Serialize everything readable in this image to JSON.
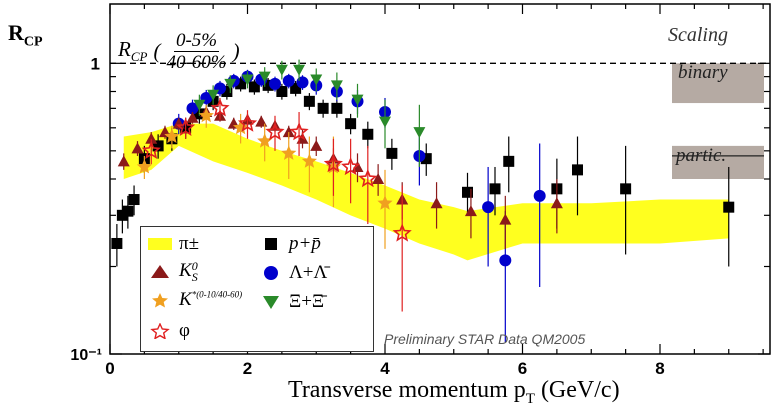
{
  "chart_data": {
    "type": "scatter",
    "ylabel_main": "R",
    "ylabel_sub": "CP",
    "xlabel_main": "Transverse momentum p",
    "xlabel_sub": "T",
    "xlabel_unit": " (GeV/c)",
    "ratio_prefix": "R",
    "ratio_prefix_sub": "CP",
    "ratio_num": "0-5%",
    "ratio_den": "40-60%",
    "scaling_title": "Scaling",
    "binary_label": "binary",
    "partic_label": "partic.",
    "preliminary_text": "Preliminary STAR Data QM2005",
    "xlim": [
      0,
      9.6
    ],
    "ylim": [
      0.1,
      1.6
    ],
    "log_y": true,
    "x_ticks": [
      "0",
      "2",
      "4",
      "6",
      "8"
    ],
    "y_ticks": [
      "10⁻¹",
      "1"
    ],
    "reference_line_y": 1.0,
    "binary_band": [
      0.73,
      1.0
    ],
    "partic_band": [
      0.4,
      0.52
    ],
    "pion_band": {
      "name": "π±",
      "color": "#ffff1f",
      "x": [
        0.2,
        0.6,
        1.0,
        1.5,
        2.0,
        2.5,
        3.0,
        3.5,
        4.0,
        4.5,
        5.0,
        5.2,
        6.0,
        7.0,
        8.0,
        9.0
      ],
      "low": [
        0.4,
        0.43,
        0.52,
        0.46,
        0.42,
        0.38,
        0.34,
        0.3,
        0.27,
        0.24,
        0.22,
        0.21,
        0.24,
        0.24,
        0.24,
        0.25
      ],
      "high": [
        0.56,
        0.58,
        0.62,
        0.62,
        0.55,
        0.5,
        0.46,
        0.42,
        0.38,
        0.34,
        0.32,
        0.31,
        0.33,
        0.33,
        0.34,
        0.34
      ]
    },
    "series": [
      {
        "name": "p+p̄",
        "marker": "square",
        "color": "#000000",
        "points": [
          [
            0.1,
            0.24
          ],
          [
            0.18,
            0.3
          ],
          [
            0.26,
            0.31
          ],
          [
            0.35,
            0.34
          ],
          [
            0.5,
            0.47
          ],
          [
            0.7,
            0.52
          ],
          [
            0.9,
            0.55
          ],
          [
            1.1,
            0.6
          ],
          [
            1.3,
            0.67
          ],
          [
            1.5,
            0.74
          ],
          [
            1.7,
            0.8
          ],
          [
            1.9,
            0.85
          ],
          [
            2.1,
            0.83
          ],
          [
            2.3,
            0.84
          ],
          [
            2.5,
            0.8
          ],
          [
            2.7,
            0.82
          ],
          [
            2.9,
            0.74
          ],
          [
            3.1,
            0.7
          ],
          [
            3.3,
            0.7
          ],
          [
            3.5,
            0.62
          ],
          [
            3.75,
            0.57
          ],
          [
            4.1,
            0.49
          ],
          [
            4.6,
            0.47
          ],
          [
            5.2,
            0.36
          ],
          [
            5.6,
            0.37
          ],
          [
            5.8,
            0.46
          ],
          [
            6.5,
            0.37
          ],
          [
            6.8,
            0.43
          ],
          [
            7.5,
            0.37
          ],
          [
            9.0,
            0.32
          ]
        ],
        "err": [
          0.04,
          0.04,
          0.04,
          0.04,
          0.05,
          0.05,
          0.05,
          0.05,
          0.05,
          0.05,
          0.05,
          0.05,
          0.05,
          0.05,
          0.05,
          0.05,
          0.05,
          0.05,
          0.05,
          0.05,
          0.06,
          0.06,
          0.06,
          0.06,
          0.07,
          0.1,
          0.1,
          0.13,
          0.15,
          0.12
        ]
      },
      {
        "name": "Λ+Λ̄",
        "marker": "circle",
        "color": "#0000cc",
        "points": [
          [
            1.0,
            0.62
          ],
          [
            1.2,
            0.7
          ],
          [
            1.4,
            0.76
          ],
          [
            1.6,
            0.82
          ],
          [
            1.8,
            0.87
          ],
          [
            2.0,
            0.9
          ],
          [
            2.2,
            0.88
          ],
          [
            2.4,
            0.85
          ],
          [
            2.6,
            0.87
          ],
          [
            2.8,
            0.86
          ],
          [
            3.0,
            0.84
          ],
          [
            3.3,
            0.8
          ],
          [
            3.6,
            0.74
          ],
          [
            4.0,
            0.68
          ],
          [
            4.5,
            0.48
          ],
          [
            5.5,
            0.32
          ],
          [
            5.75,
            0.21
          ],
          [
            6.25,
            0.35
          ]
        ],
        "err": [
          0.05,
          0.05,
          0.05,
          0.05,
          0.05,
          0.05,
          0.05,
          0.05,
          0.05,
          0.05,
          0.06,
          0.06,
          0.07,
          0.08,
          0.1,
          0.12,
          0.1,
          0.18
        ]
      },
      {
        "name": "Ξ+Ξ̄",
        "marker": "tri-down",
        "color": "#2a8a2a",
        "points": [
          [
            1.3,
            0.72
          ],
          [
            1.5,
            0.78
          ],
          [
            1.75,
            0.85
          ],
          [
            2.0,
            0.88
          ],
          [
            2.25,
            0.9
          ],
          [
            2.5,
            0.95
          ],
          [
            2.75,
            0.95
          ],
          [
            3.0,
            0.88
          ],
          [
            3.3,
            0.84
          ],
          [
            3.6,
            0.75
          ],
          [
            4.0,
            0.63
          ],
          [
            4.5,
            0.58
          ]
        ],
        "err": [
          0.06,
          0.06,
          0.06,
          0.06,
          0.07,
          0.07,
          0.08,
          0.08,
          0.09,
          0.1,
          0.12,
          0.14
        ]
      },
      {
        "name": "K⁰S",
        "marker": "tri-up",
        "color": "#8b1a1a",
        "points": [
          [
            0.2,
            0.46
          ],
          [
            0.4,
            0.51
          ],
          [
            0.6,
            0.55
          ],
          [
            0.8,
            0.58
          ],
          [
            1.0,
            0.62
          ],
          [
            1.2,
            0.65
          ],
          [
            1.4,
            0.68
          ],
          [
            1.6,
            0.66
          ],
          [
            1.8,
            0.62
          ],
          [
            2.0,
            0.64
          ],
          [
            2.2,
            0.63
          ],
          [
            2.4,
            0.61
          ],
          [
            2.6,
            0.58
          ],
          [
            2.8,
            0.55
          ],
          [
            3.0,
            0.52
          ],
          [
            3.25,
            0.47
          ],
          [
            3.6,
            0.44
          ],
          [
            3.9,
            0.4
          ],
          [
            4.25,
            0.34
          ],
          [
            4.75,
            0.33
          ],
          [
            5.25,
            0.31
          ],
          [
            5.75,
            0.29
          ],
          [
            6.5,
            0.33
          ]
        ],
        "err": [
          0.03,
          0.03,
          0.03,
          0.03,
          0.03,
          0.03,
          0.03,
          0.03,
          0.03,
          0.03,
          0.03,
          0.03,
          0.03,
          0.04,
          0.04,
          0.04,
          0.05,
          0.05,
          0.05,
          0.06,
          0.06,
          0.06,
          0.07
        ]
      },
      {
        "name": "K*",
        "marker": "star",
        "color": "#f0a020",
        "points": [
          [
            0.5,
            0.44
          ],
          [
            0.9,
            0.56
          ],
          [
            1.4,
            0.66
          ],
          [
            1.9,
            0.6
          ],
          [
            2.25,
            0.54
          ],
          [
            2.6,
            0.49
          ],
          [
            2.9,
            0.46
          ],
          [
            3.25,
            0.44
          ],
          [
            4.0,
            0.33
          ]
        ],
        "err": [
          0.04,
          0.05,
          0.06,
          0.07,
          0.08,
          0.09,
          0.1,
          0.12,
          0.1
        ]
      },
      {
        "name": "φ",
        "marker": "open-star",
        "color": "#e02020",
        "points": [
          [
            0.6,
            0.5
          ],
          [
            1.1,
            0.6
          ],
          [
            1.6,
            0.7
          ],
          [
            2.0,
            0.62
          ],
          [
            2.4,
            0.58
          ],
          [
            2.75,
            0.58
          ],
          [
            3.25,
            0.45
          ],
          [
            3.5,
            0.44
          ],
          [
            3.75,
            0.4
          ],
          [
            4.25,
            0.26
          ]
        ],
        "err": [
          0.05,
          0.05,
          0.06,
          0.07,
          0.08,
          0.1,
          0.1,
          0.11,
          0.12,
          0.12
        ]
      }
    ]
  },
  "legend": {
    "pion": "π±",
    "kshort": "K",
    "kshort_sup": "0",
    "kshort_sub": "S",
    "kstar": "K",
    "kstar_sup": "*(0-10/40-60)",
    "phi": "φ",
    "proton": "p+p̄",
    "lambda": "Λ+Λ̄",
    "xi": "Ξ+Ξ̄"
  }
}
